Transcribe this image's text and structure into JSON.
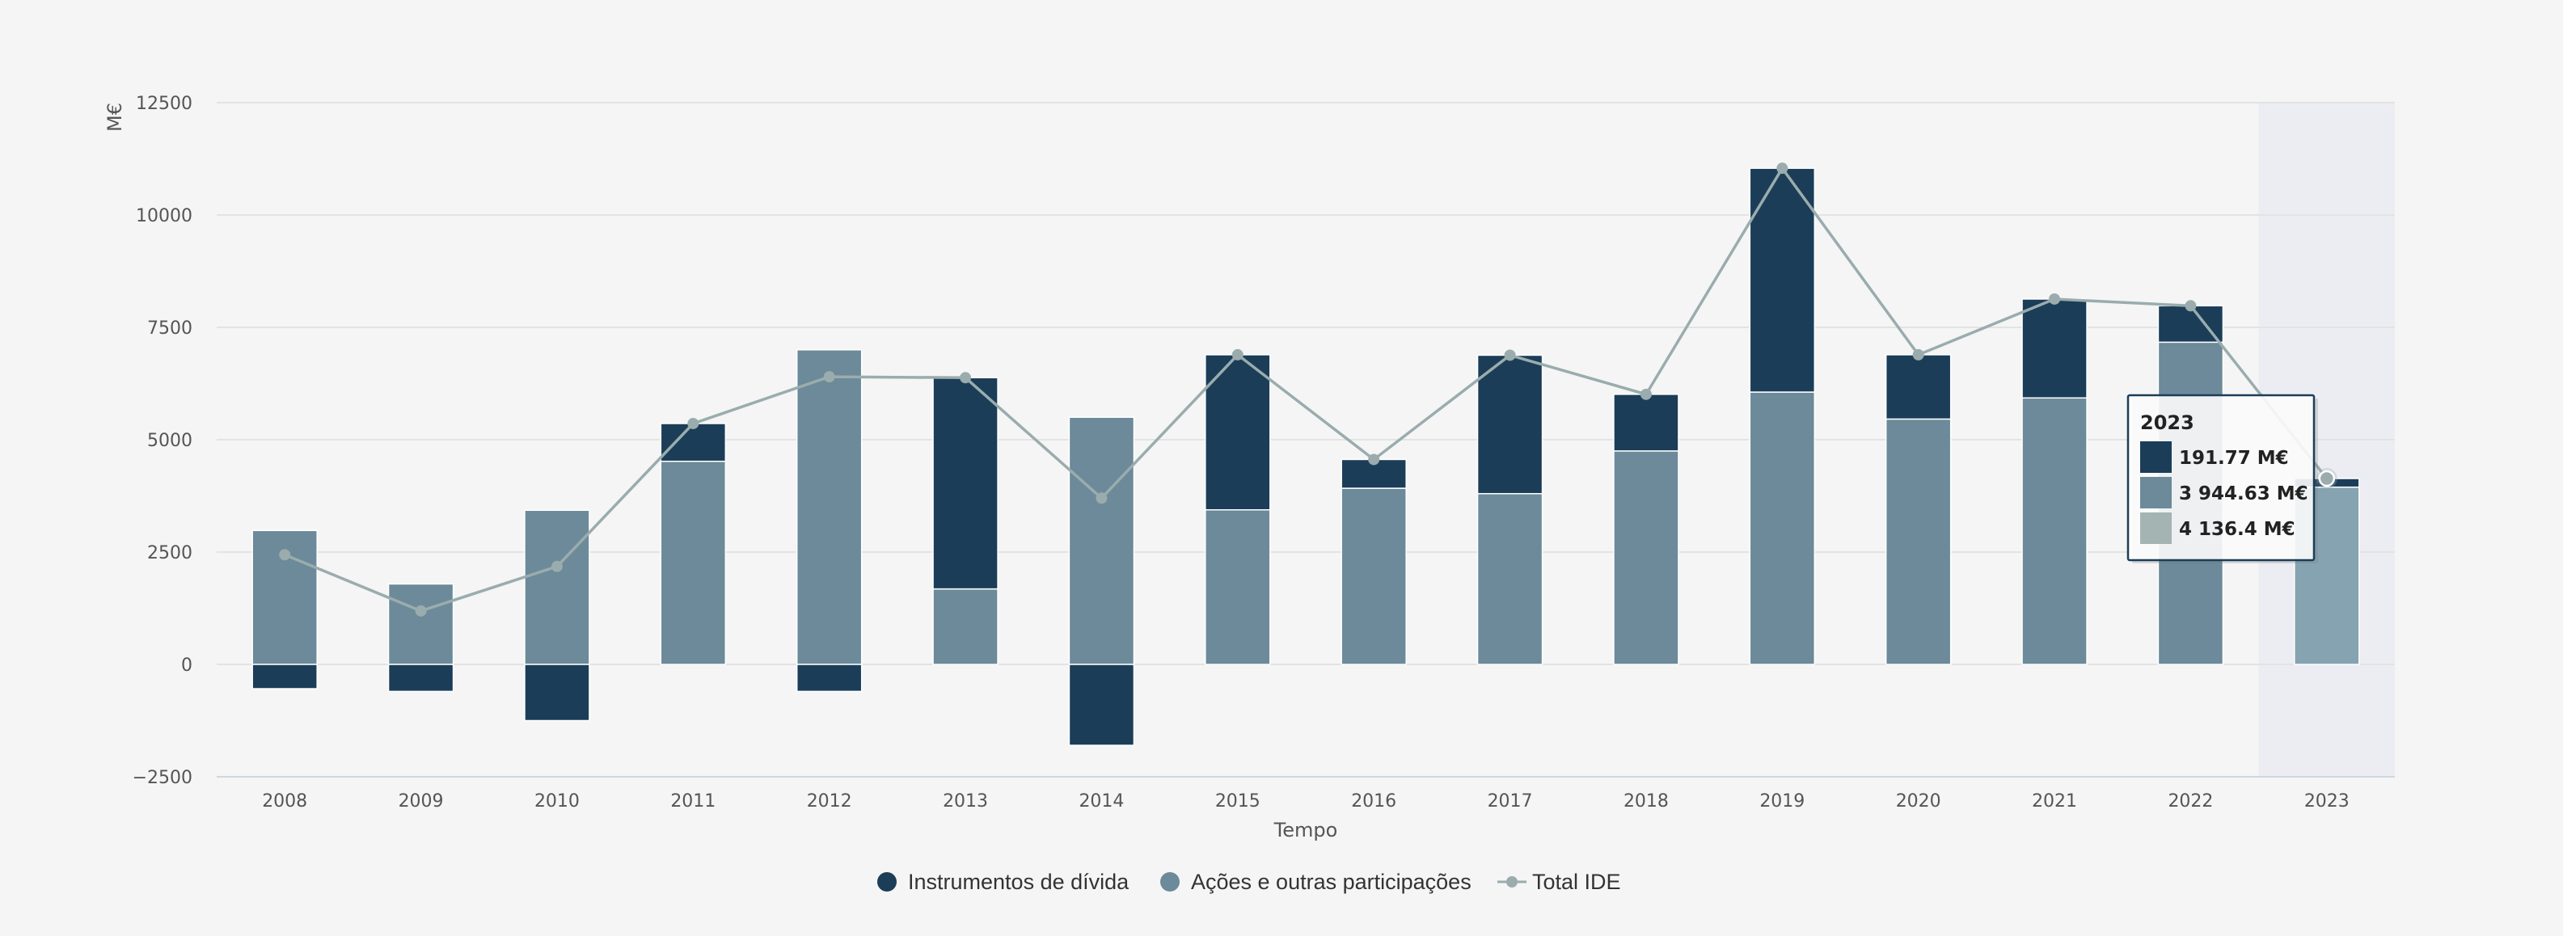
{
  "chart_data": {
    "type": "bar",
    "stacked": true,
    "categories": [
      "2008",
      "2009",
      "2010",
      "2011",
      "2012",
      "2013",
      "2014",
      "2015",
      "2016",
      "2017",
      "2018",
      "2019",
      "2020",
      "2021",
      "2022",
      "2023"
    ],
    "series": [
      {
        "name": "Instrumentos de dívida",
        "kind": "bar",
        "color": "#1b3d58",
        "values": [
          -540,
          -600,
          -1250,
          840,
          -600,
          4700,
          -1800,
          3450,
          640,
          3080,
          1260,
          4980,
          1430,
          2200,
          810,
          191.77
        ]
      },
      {
        "name": "Ações e outras participações",
        "kind": "bar",
        "color": "#6c8a99",
        "values": [
          2980,
          1790,
          3430,
          4520,
          7000,
          1680,
          5500,
          3440,
          3920,
          3800,
          4750,
          6060,
          5460,
          5930,
          7170,
          3944.63
        ]
      },
      {
        "name": "Total IDE",
        "kind": "line",
        "color": "#9aacad",
        "values": [
          2440,
          1190,
          2180,
          5360,
          6400,
          6380,
          3700,
          6890,
          4560,
          6880,
          6010,
          11040,
          6890,
          8130,
          7980,
          4136.4
        ]
      }
    ],
    "xlabel": "Tempo",
    "ylabel": "M€",
    "ylim": [
      -2500,
      12500
    ],
    "yticks": [
      -2500,
      0,
      2500,
      5000,
      7500,
      10000,
      12500
    ],
    "ytick_labels": [
      "−2500",
      "0",
      "2500",
      "5000",
      "7500",
      "10000",
      "12500"
    ],
    "grid": true,
    "legend_position": "bottom-center",
    "highlighted_category": "2023",
    "highlight_bar_color": "#86a3b1",
    "tooltip": {
      "title": "2023",
      "entries": [
        {
          "color": "#1b3d58",
          "text": "191.77 M€"
        },
        {
          "color": "#6c8a99",
          "text": "3 944.63 M€"
        },
        {
          "color": "#a3b4b3",
          "text": "4 136.4 M€"
        }
      ]
    }
  },
  "legend": [
    {
      "label": "Instrumentos de dívida",
      "color": "#1b3d58",
      "marker": "dot"
    },
    {
      "label": "Ações e outras participações",
      "color": "#6c8a99",
      "marker": "dot"
    },
    {
      "label": "Total IDE",
      "color": "#9aacad",
      "marker": "line"
    }
  ]
}
